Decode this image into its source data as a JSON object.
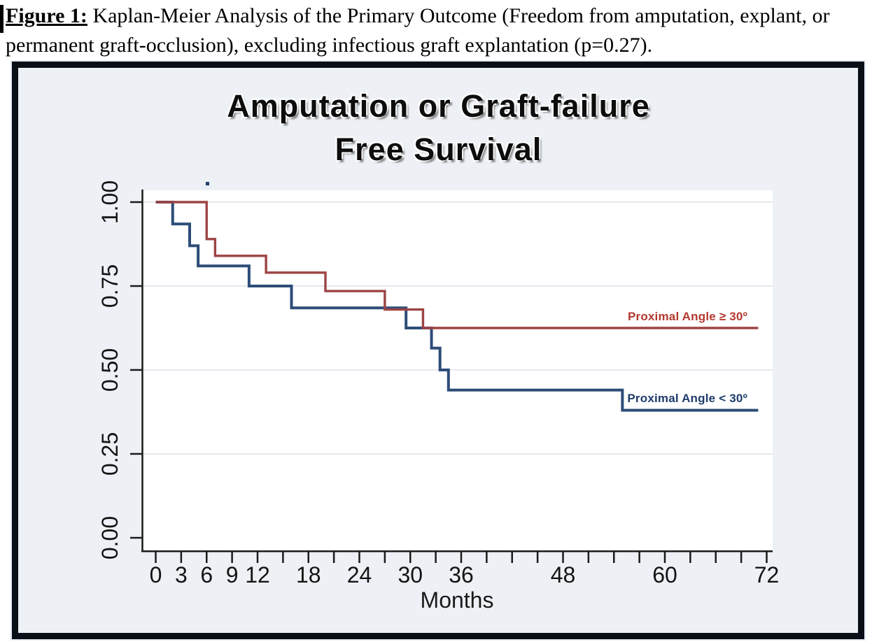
{
  "caption": {
    "label": "Figure 1:",
    "text": "Kaplan-Meier Analysis of the Primary Outcome (Freedom from amputation, explant, or permanent graft-occlusion), excluding infectious graft explantation (p=0.27)."
  },
  "figure": {
    "title_line1": "Amputation or Graft-failure",
    "title_line2": "Free Survival"
  },
  "chart_data": {
    "type": "line",
    "subtype": "kaplan_meier_step",
    "title": "Amputation or Graft-failure Free Survival",
    "p_value_note": "p=0.27",
    "x_axis": {
      "label": "Months",
      "min": 0,
      "max": 72,
      "minor_tick_interval": 3,
      "labeled_ticks": [
        0,
        3,
        6,
        9,
        12,
        18,
        24,
        30,
        36,
        48,
        60,
        72
      ]
    },
    "y_axis": {
      "label": "",
      "min": 0.0,
      "max": 1.0,
      "ticks": [
        0.0,
        0.25,
        0.5,
        0.75,
        1.0
      ],
      "tick_labels": [
        "0.00",
        "0.25",
        "0.50",
        "0.75",
        "1.00"
      ],
      "grid": true
    },
    "legend_position": "inline-right",
    "end_month": 71,
    "series": [
      {
        "name": "Proximal Angle ≥ 30º",
        "color": "#9d4444",
        "label_color": "#b2392f",
        "steps": [
          [
            0,
            1.0
          ],
          [
            6,
            0.89
          ],
          [
            7,
            0.84
          ],
          [
            13,
            0.79
          ],
          [
            20,
            0.735
          ],
          [
            27,
            0.68
          ],
          [
            31.5,
            0.625
          ]
        ]
      },
      {
        "name": "Proximal Angle < 30º",
        "color": "#2d4d78",
        "label_color": "#1e3c6b",
        "steps": [
          [
            0,
            1.0
          ],
          [
            2,
            0.935
          ],
          [
            4,
            0.87
          ],
          [
            5,
            0.81
          ],
          [
            11,
            0.75
          ],
          [
            16,
            0.685
          ],
          [
            29.5,
            0.625
          ],
          [
            32.5,
            0.565
          ],
          [
            33.5,
            0.5
          ],
          [
            34.5,
            0.44
          ],
          [
            55,
            0.38
          ]
        ]
      }
    ],
    "censor_mark": {
      "month": 6.1,
      "value": 1.055,
      "series": "Proximal Angle < 30º"
    },
    "theme": {
      "figure_background": "#edf1f5",
      "plot_background": "#ffffff",
      "frame_border": "#0a0e16",
      "axis_color": "#1a1a1a",
      "gridline_color": "#e4eaef"
    }
  }
}
